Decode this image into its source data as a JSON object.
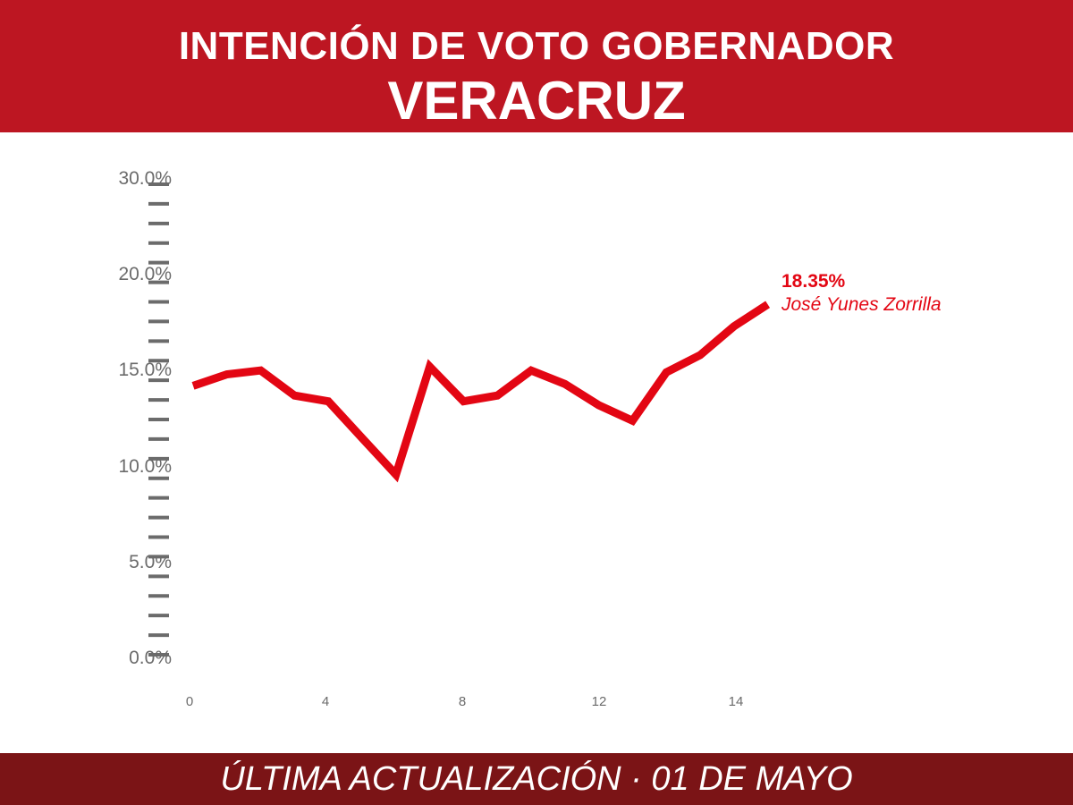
{
  "header": {
    "title_line1": "INTENCIÓN DE VOTO GOBERNADOR",
    "title_line2": "VERACRUZ"
  },
  "footer": {
    "text": "ÚLTIMA ACTUALIZACIÓN · 01 DE MAYO"
  },
  "colors": {
    "header_bg": "#bd1622",
    "footer_bg": "#7b1416",
    "series": "#e30613",
    "axis": "#6b6b6b"
  },
  "chart_data": {
    "type": "line",
    "title": "INTENCIÓN DE VOTO GOBERNADOR VERACRUZ",
    "xlabel": "",
    "ylabel": "",
    "x": [
      0,
      1,
      2,
      3,
      4,
      5,
      6,
      7,
      8,
      9,
      10,
      11,
      12,
      13,
      14,
      15,
      16,
      17
    ],
    "x_ticks": [
      0,
      4,
      8,
      12,
      14
    ],
    "y_ticks": [
      "0.0%",
      "5.0%",
      "10.0%",
      "15.0%",
      "20.0%",
      "30.0%"
    ],
    "series": [
      {
        "name": "José Yunes Zorrilla",
        "values": [
          14.1,
          14.7,
          14.9,
          13.6,
          13.3,
          11.4,
          9.5,
          15.1,
          13.3,
          13.6,
          14.9,
          14.2,
          13.1,
          12.3,
          14.8,
          15.7,
          17.2,
          18.35
        ],
        "end_label": "18.35%"
      }
    ],
    "grid": false,
    "legend": "none"
  }
}
